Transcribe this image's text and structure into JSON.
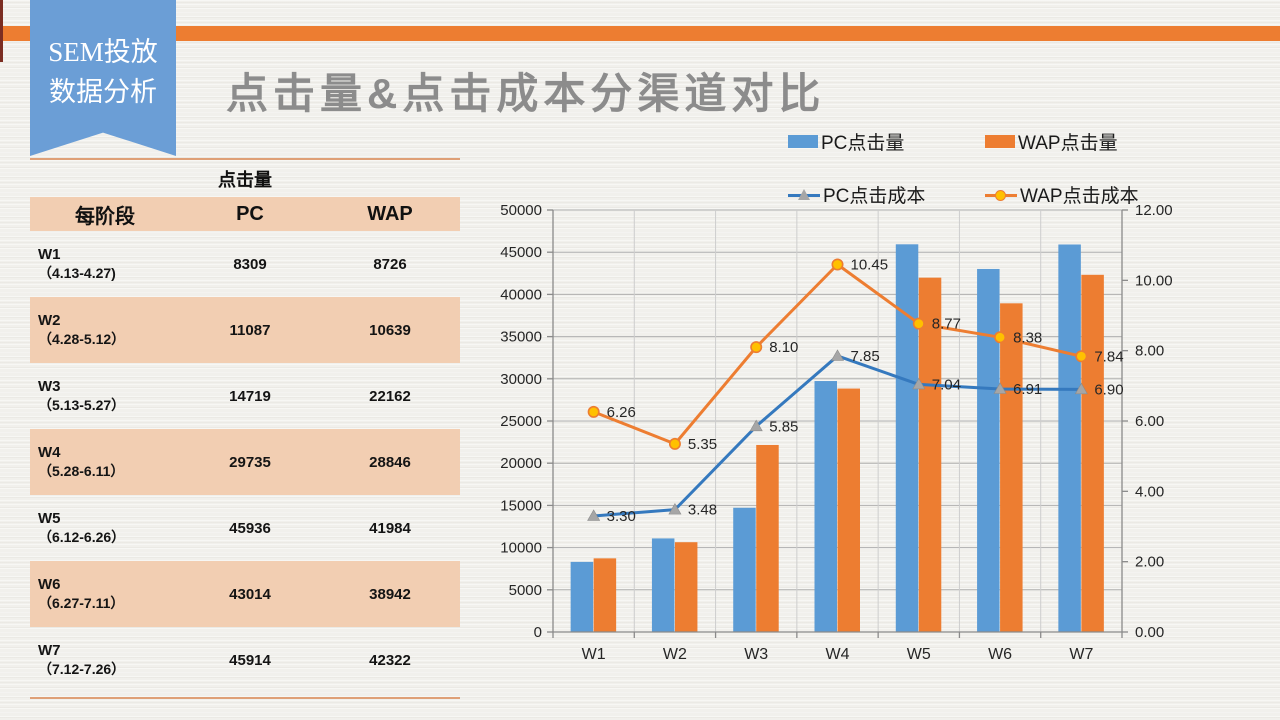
{
  "ribbon": {
    "line1": "SEM投放",
    "line2": "数据分析"
  },
  "page_title": "点击量&点击成本分渠道对比",
  "colors": {
    "accent_orange": "#ED7D31",
    "bar_blue": "#5B9BD5",
    "pc_cost_line": "#3579BE",
    "pc_marker_gray": "#A6A6A6",
    "wap_marker_gold": "#FFC000",
    "ribbon_blue": "#6B9ED6",
    "title_gray": "#8C8C8C",
    "table_peach": "#F2CEB2",
    "table_rule": "#DFA077"
  },
  "table": {
    "caption": "点击量",
    "columns": [
      "每阶段",
      "PC",
      "WAP"
    ],
    "rows": [
      {
        "week": "W1",
        "dates": "（4.13-4.27)",
        "pc": "8309",
        "wap": "8726"
      },
      {
        "week": "W2",
        "dates": "（4.28-5.12）",
        "pc": "11087",
        "wap": "10639"
      },
      {
        "week": "W3",
        "dates": "（5.13-5.27）",
        "pc": "14719",
        "wap": "22162"
      },
      {
        "week": "W4",
        "dates": "（5.28-6.11）",
        "pc": "29735",
        "wap": "28846"
      },
      {
        "week": "W5",
        "dates": "（6.12-6.26）",
        "pc": "45936",
        "wap": "41984"
      },
      {
        "week": "W6",
        "dates": "（6.27-7.11）",
        "pc": "43014",
        "wap": "38942"
      },
      {
        "week": "W7",
        "dates": "（7.12-7.26）",
        "pc": "45914",
        "wap": "42322"
      }
    ]
  },
  "chart_data": {
    "type": "bar",
    "subtype": "combo-bar-line-dual-axis",
    "categories": [
      "W1",
      "W2",
      "W3",
      "W4",
      "W5",
      "W6",
      "W7"
    ],
    "series": [
      {
        "name": "PC点击量",
        "kind": "bar",
        "axis": "left",
        "color": "#5B9BD5",
        "values": [
          8309,
          11087,
          14719,
          29735,
          45936,
          43014,
          45914
        ]
      },
      {
        "name": "WAP点击量",
        "kind": "bar",
        "axis": "left",
        "color": "#ED7D31",
        "values": [
          8726,
          10639,
          22162,
          28846,
          41984,
          38942,
          42322
        ]
      },
      {
        "name": "PC点击成本",
        "kind": "line",
        "axis": "right",
        "color": "#3579BE",
        "marker": "triangle",
        "values": [
          3.3,
          3.48,
          5.85,
          7.85,
          7.04,
          6.91,
          6.9
        ]
      },
      {
        "name": "WAP点击成本",
        "kind": "line",
        "axis": "right",
        "color": "#ED7D31",
        "marker": "circle",
        "values": [
          6.26,
          5.35,
          8.1,
          10.45,
          8.77,
          8.38,
          7.84
        ]
      }
    ],
    "left_axis": {
      "min": 0,
      "max": 50000,
      "step": 5000,
      "decimals": 0
    },
    "right_axis": {
      "min": 0,
      "max": 12,
      "step": 2,
      "decimals": 2
    },
    "grid": true,
    "legend_position": "top-right",
    "data_labels": "lines-only"
  }
}
